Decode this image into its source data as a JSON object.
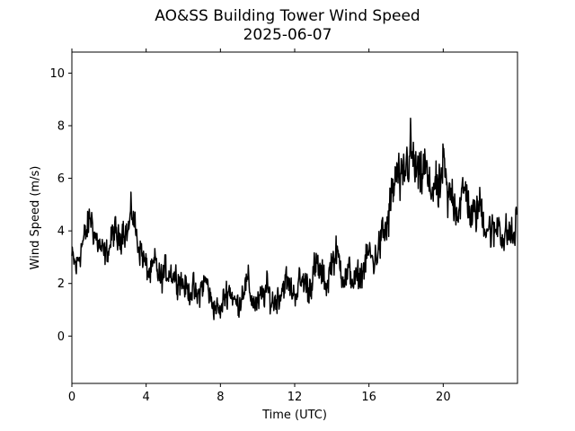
{
  "chart_data": {
    "type": "line",
    "title": "AO&SS Building Tower Wind Speed",
    "subtitle": "2025-06-07",
    "xlabel": "Time (UTC)",
    "ylabel": "Wind Speed (m/s)",
    "xlim": [
      0,
      24
    ],
    "ylim": [
      -1.8,
      10.8
    ],
    "x_ticks": [
      0,
      4,
      8,
      12,
      16,
      20
    ],
    "y_ticks": [
      0,
      2,
      4,
      6,
      8,
      10
    ],
    "grid": false,
    "legend": "none",
    "series": [
      {
        "color": "#000000",
        "x": [
          0,
          0.25,
          0.5,
          0.75,
          1,
          1.25,
          1.5,
          1.75,
          2,
          2.25,
          2.5,
          2.75,
          3,
          3.25,
          3.5,
          3.75,
          4,
          4.25,
          4.5,
          4.75,
          5,
          5.25,
          5.5,
          5.75,
          6,
          6.25,
          6.5,
          6.75,
          7,
          7.25,
          7.5,
          7.75,
          8,
          8.25,
          8.5,
          8.75,
          9,
          9.25,
          9.5,
          9.75,
          10,
          10.25,
          10.5,
          10.75,
          11,
          11.25,
          11.5,
          11.75,
          12,
          12.25,
          12.5,
          12.75,
          13,
          13.25,
          13.5,
          13.75,
          14,
          14.25,
          14.5,
          14.75,
          15,
          15.25,
          15.5,
          15.75,
          16,
          16.25,
          16.5,
          16.75,
          17,
          17.25,
          17.5,
          17.75,
          18,
          18.25,
          18.5,
          18.75,
          19,
          19.25,
          19.5,
          19.75,
          20,
          20.25,
          20.5,
          20.75,
          21,
          21.25,
          21.5,
          21.75,
          22,
          22.25,
          22.5,
          22.75,
          23,
          23.25,
          23.5,
          23.75,
          23.95
        ],
        "values": [
          3.0,
          2.6,
          3.4,
          3.8,
          4.6,
          3.8,
          3.4,
          3.0,
          3.3,
          4.0,
          3.6,
          4.2,
          3.9,
          4.8,
          3.7,
          3.2,
          2.6,
          2.3,
          2.8,
          2.1,
          2.4,
          2.5,
          2.3,
          2.2,
          2.0,
          1.7,
          1.8,
          1.4,
          1.9,
          2.1,
          1.3,
          1.1,
          0.9,
          1.6,
          1.8,
          1.3,
          1.2,
          1.9,
          2.0,
          1.3,
          1.2,
          1.5,
          1.8,
          1.3,
          1.4,
          1.7,
          2.1,
          1.8,
          1.6,
          2.0,
          2.1,
          1.8,
          2.4,
          2.6,
          2.2,
          2.0,
          2.9,
          3.1,
          2.6,
          2.2,
          2.4,
          2.0,
          2.3,
          2.6,
          3.2,
          2.8,
          3.3,
          3.8,
          4.2,
          5.4,
          6.2,
          5.6,
          6.5,
          7.0,
          6.3,
          5.8,
          6.6,
          5.4,
          5.9,
          5.2,
          6.6,
          5.1,
          5.5,
          4.8,
          5.2,
          5.6,
          4.4,
          4.7,
          5.0,
          4.3,
          4.1,
          3.8,
          4.5,
          3.6,
          4.0,
          3.7,
          4.3
        ],
        "noise": [
          0.5,
          0.7,
          0.6,
          0.7,
          0.7,
          0.6,
          0.6,
          0.6,
          0.5,
          0.7,
          0.6,
          0.7,
          0.6,
          0.7,
          0.6,
          0.6,
          0.6,
          0.6,
          0.6,
          0.6,
          0.6,
          0.6,
          0.5,
          0.6,
          0.6,
          0.5,
          0.6,
          0.5,
          0.6,
          0.6,
          0.5,
          0.5,
          0.4,
          0.6,
          0.6,
          0.5,
          0.5,
          0.6,
          0.6,
          0.6,
          0.5,
          0.6,
          0.6,
          0.6,
          0.6,
          0.6,
          0.6,
          0.6,
          0.5,
          0.6,
          0.6,
          0.7,
          0.7,
          0.8,
          0.6,
          0.7,
          0.6,
          0.7,
          0.7,
          0.7,
          0.7,
          0.6,
          0.6,
          0.7,
          0.6,
          0.6,
          0.7,
          0.9,
          1.0,
          1.0,
          0.9,
          1.0,
          1.1,
          1.2,
          1.1,
          1.0,
          1.0,
          1.0,
          1.0,
          0.9,
          1.0,
          0.9,
          1.0,
          0.9,
          0.9,
          0.9,
          0.8,
          0.8,
          0.9,
          0.8,
          0.8,
          0.8,
          0.8,
          0.7,
          0.8,
          0.8,
          0.8
        ],
        "samples": 1100
      }
    ]
  }
}
